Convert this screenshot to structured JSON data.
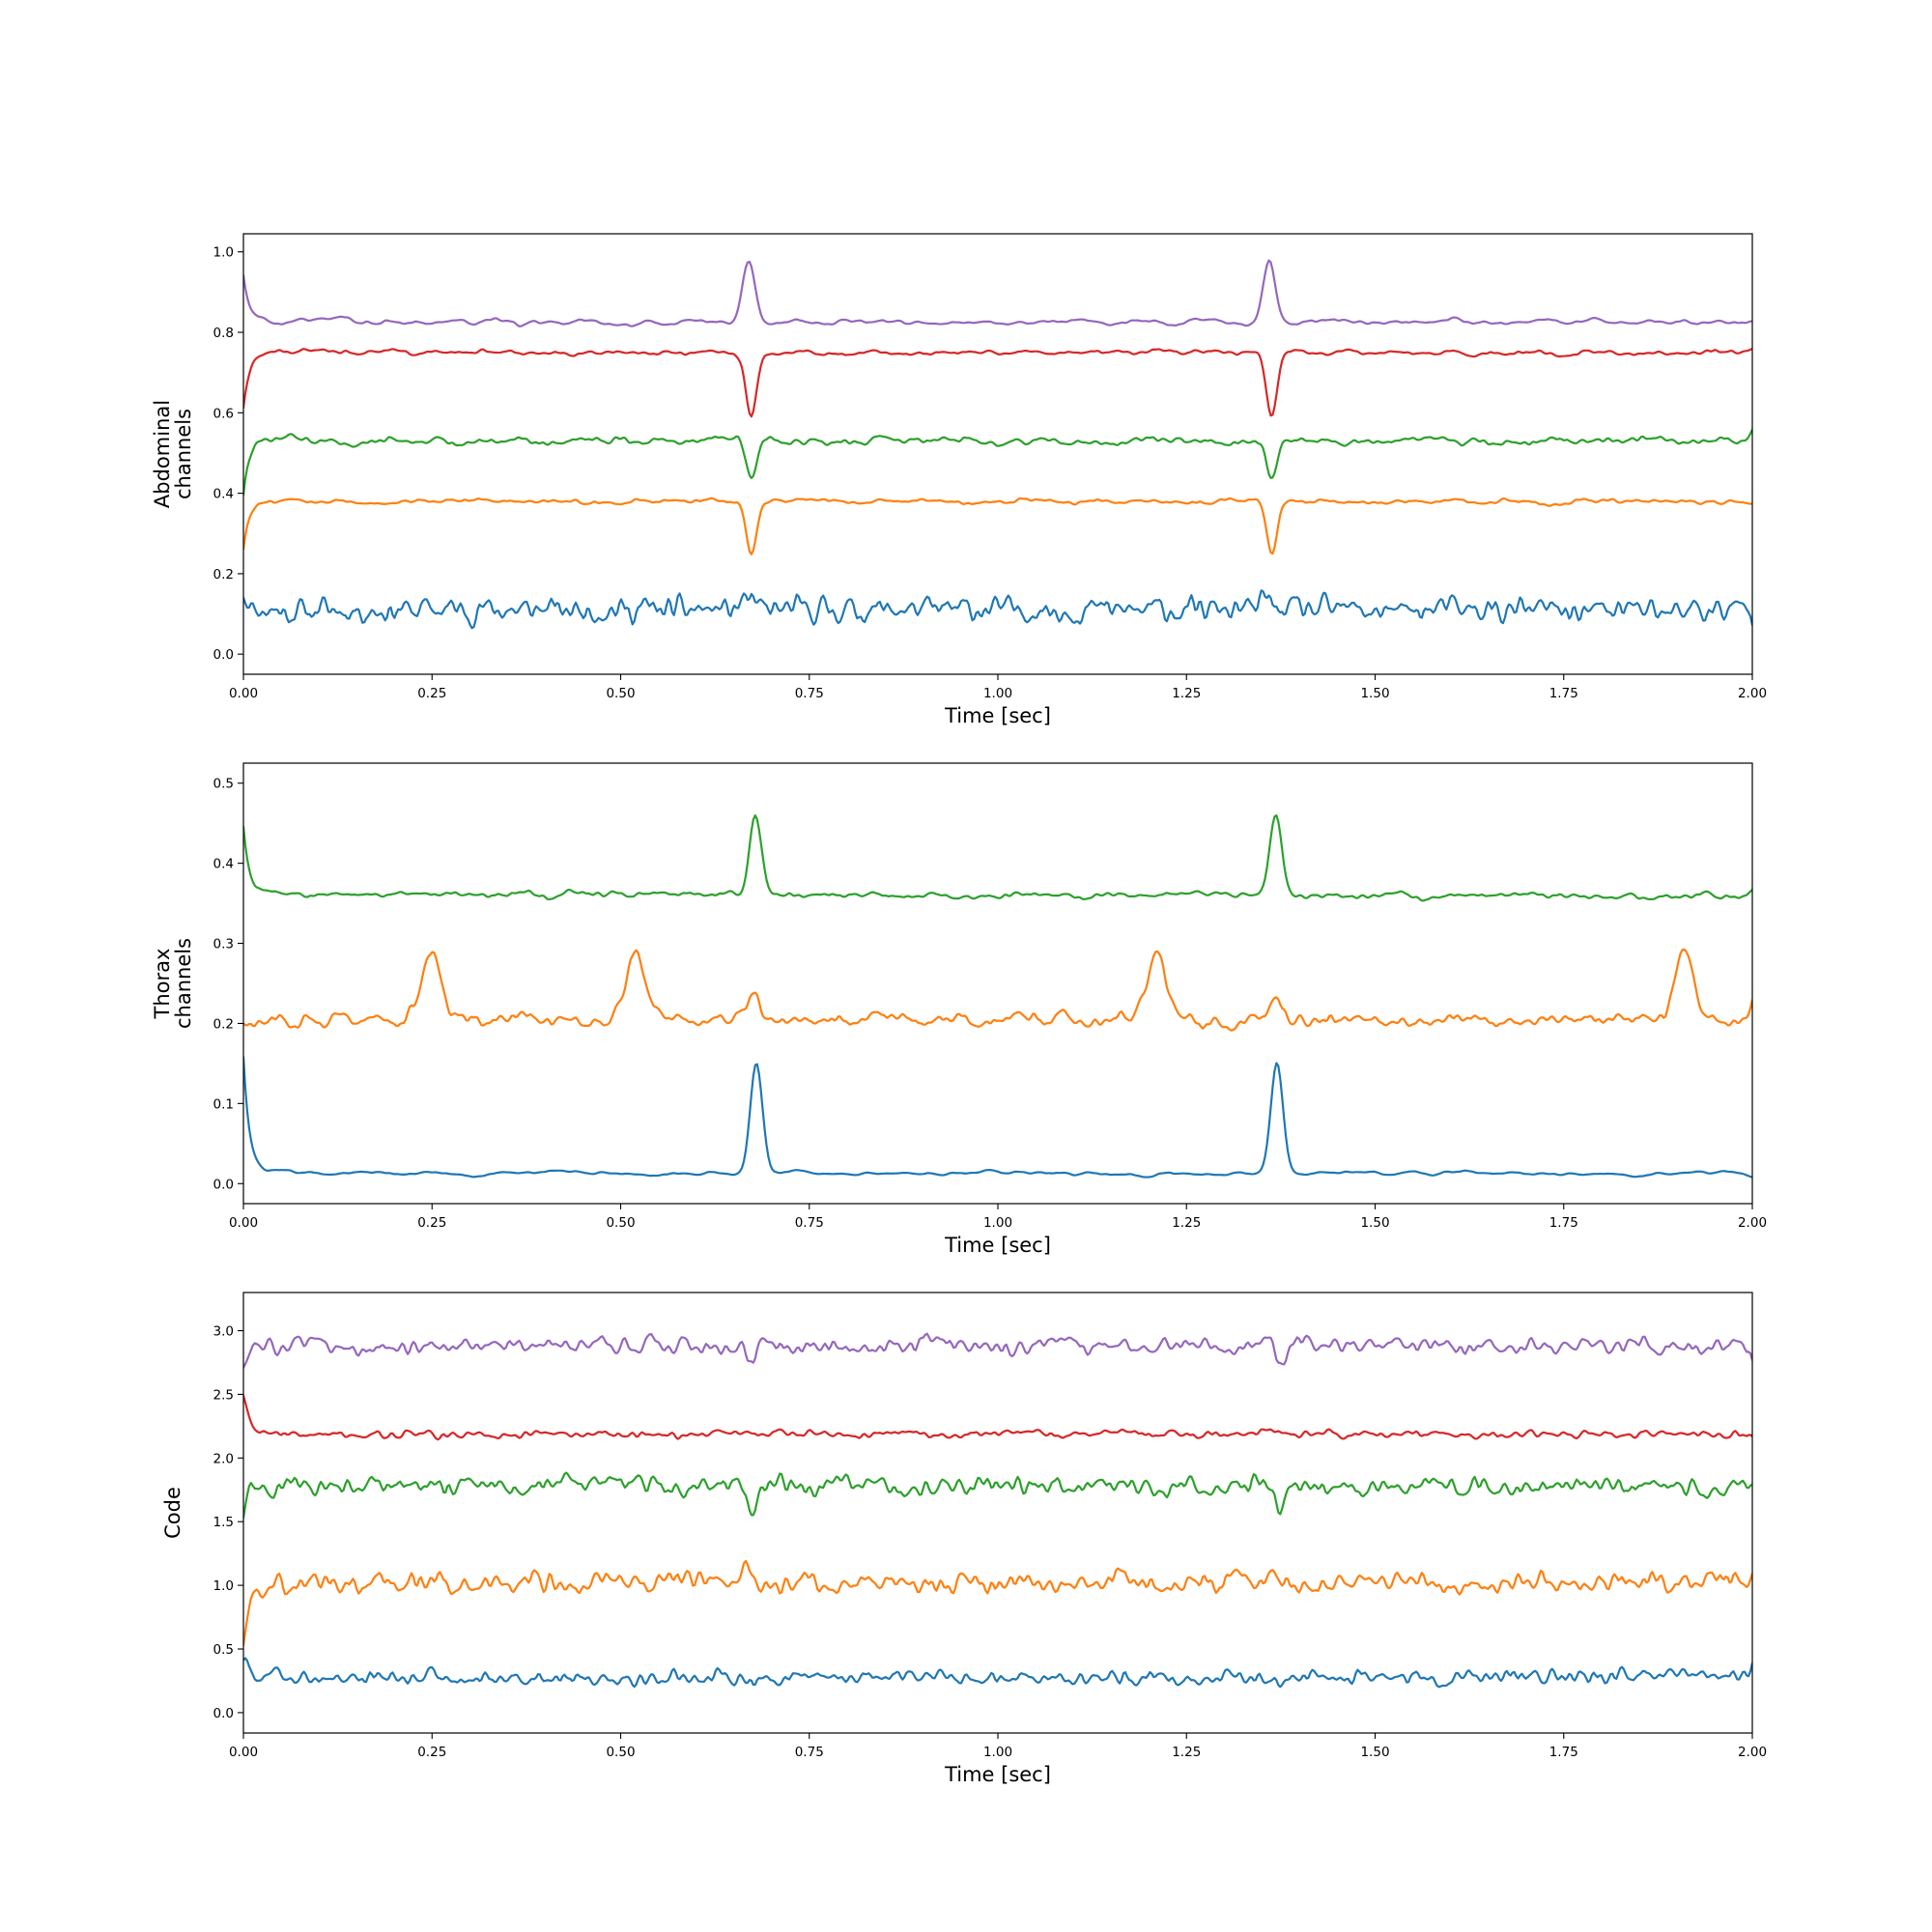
{
  "figure": {
    "background": "#ffffff"
  },
  "chart_data": [
    {
      "type": "line",
      "title": "",
      "xlabel": "Time [sec]",
      "ylabel": "Abdominal\nchannels",
      "xlim": [
        0,
        2.0
      ],
      "ylim": [
        -0.05,
        1.045
      ],
      "xticks": [
        0,
        0.25,
        0.5,
        0.75,
        1.0,
        1.25,
        1.5,
        1.75,
        2.0
      ],
      "xtick_labels": [
        "0.00",
        "0.25",
        "0.50",
        "0.75",
        "1.00",
        "1.25",
        "1.50",
        "1.75",
        "2.00"
      ],
      "yticks": [
        0,
        0.2,
        0.4,
        0.6,
        0.8,
        1.0
      ],
      "ytick_labels": [
        "0.0",
        "0.2",
        "0.4",
        "0.6",
        "0.8",
        "1.0"
      ],
      "grid": false,
      "peaks": [
        0.67,
        1.36
      ],
      "series": [
        {
          "color": "#1f77b4",
          "baseline": 0.11,
          "start": 0.17,
          "peak_shape": [
            0.07,
            -0.05
          ],
          "noise": 0.045,
          "wander": 0.005
        },
        {
          "color": "#ff7f0e",
          "baseline": 0.38,
          "start": 0.27,
          "peak_shape": [
            0.01,
            -0.14
          ],
          "noise": 0.006,
          "wander": 0.012
        },
        {
          "color": "#2ca02c",
          "baseline": 0.53,
          "start": 0.41,
          "peak_shape": [
            0.02,
            -0.12
          ],
          "noise": 0.008,
          "wander": 0.022
        },
        {
          "color": "#d62728",
          "baseline": 0.75,
          "start": 0.62,
          "peak_shape": [
            0.0,
            -0.16
          ],
          "noise": 0.005,
          "wander": 0.008
        },
        {
          "color": "#9467bd",
          "baseline": 0.825,
          "start": 0.95,
          "peak_shape": [
            0.17,
            -0.02
          ],
          "noise": 0.003,
          "wander": 0.012
        }
      ]
    },
    {
      "type": "line",
      "title": "",
      "xlabel": "Time [sec]",
      "ylabel": "Thorax\nchannels",
      "xlim": [
        0,
        2.0
      ],
      "ylim": [
        -0.025,
        0.525
      ],
      "xticks": [
        0,
        0.25,
        0.5,
        0.75,
        1.0,
        1.25,
        1.5,
        1.75,
        2.0
      ],
      "xtick_labels": [
        "0.00",
        "0.25",
        "0.50",
        "0.75",
        "1.00",
        "1.25",
        "1.50",
        "1.75",
        "2.00"
      ],
      "yticks": [
        0,
        0.1,
        0.2,
        0.3,
        0.4,
        0.5
      ],
      "ytick_labels": [
        "0.0",
        "0.1",
        "0.2",
        "0.3",
        "0.4",
        "0.5"
      ],
      "grid": false,
      "peaks": [
        0.68,
        1.37
      ],
      "series": [
        {
          "color": "#1f77b4",
          "baseline": 0.013,
          "start": 0.155,
          "peak_shape": [
            0.145,
            -0.01
          ],
          "noise": 0.001,
          "wander": 0.006
        },
        {
          "color": "#ff7f0e",
          "baseline": 0.205,
          "start": 0.19,
          "peak_shape": [
            0.06,
            -0.03
          ],
          "noise": 0.008,
          "wander": 0.018,
          "fetal_peaks": [
            0.25,
            0.52,
            1.21,
            1.91
          ],
          "fetal_height": 0.085
        },
        {
          "color": "#2ca02c",
          "baseline": 0.36,
          "start": 0.44,
          "peak_shape": [
            0.135,
            -0.04
          ],
          "noise": 0.003,
          "wander": 0.006
        }
      ]
    },
    {
      "type": "line",
      "title": "",
      "xlabel": "Time [sec]",
      "ylabel": "Code",
      "xlim": [
        0,
        2.0
      ],
      "ylim": [
        -0.16,
        3.3
      ],
      "xticks": [
        0,
        0.25,
        0.5,
        0.75,
        1.0,
        1.25,
        1.5,
        1.75,
        2.0
      ],
      "xtick_labels": [
        "0.00",
        "0.25",
        "0.50",
        "0.75",
        "1.00",
        "1.25",
        "1.50",
        "1.75",
        "2.00"
      ],
      "yticks": [
        0,
        0.5,
        1.0,
        1.5,
        2.0,
        2.5,
        3.0
      ],
      "ytick_labels": [
        "0.0",
        "0.5",
        "1.0",
        "1.5",
        "2.0",
        "2.5",
        "3.0"
      ],
      "grid": false,
      "peaks": [
        0.67,
        1.37
      ],
      "series": [
        {
          "color": "#1f77b4",
          "baseline": 0.28,
          "start": 0.55,
          "peak_shape": [
            0.12,
            -0.15
          ],
          "noise": 0.09,
          "wander": 0.05
        },
        {
          "color": "#ff7f0e",
          "baseline": 1.02,
          "start": 0.7,
          "peak_shape": [
            0.2,
            -0.15
          ],
          "noise": 0.12,
          "wander": 0.05
        },
        {
          "color": "#2ca02c",
          "baseline": 1.78,
          "start": 1.7,
          "peak_shape": [
            0.1,
            -0.25
          ],
          "noise": 0.1,
          "wander": 0.07
        },
        {
          "color": "#d62728",
          "baseline": 2.19,
          "start": 2.55,
          "peak_shape": [
            0.05,
            -0.04
          ],
          "noise": 0.04,
          "wander": 0.02
        },
        {
          "color": "#9467bd",
          "baseline": 2.88,
          "start": 2.85,
          "peak_shape": [
            0.12,
            -0.22
          ],
          "noise": 0.08,
          "wander": 0.06
        }
      ]
    }
  ]
}
